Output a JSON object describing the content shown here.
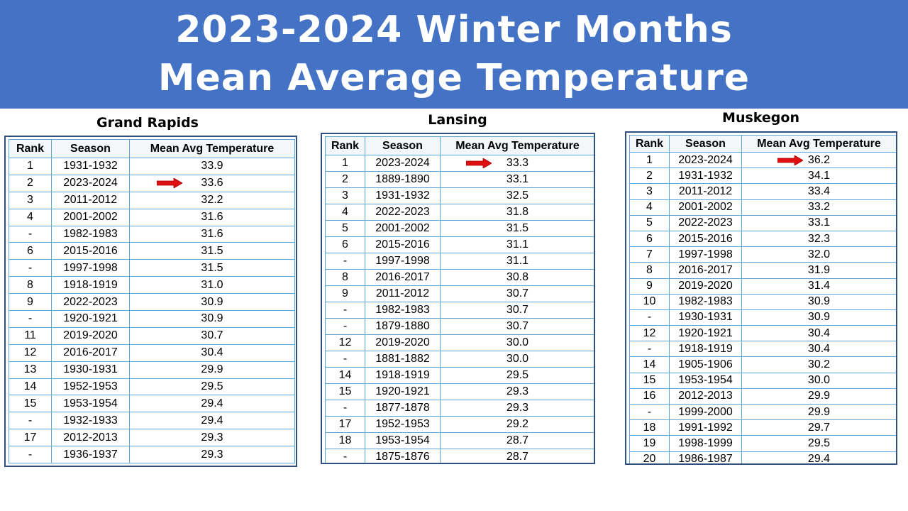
{
  "title": {
    "line1": "2023-2024 Winter Months",
    "line2": "Mean Average Temperature"
  },
  "headers": {
    "rank": "Rank",
    "season": "Season",
    "temp": "Mean Avg Temperature"
  },
  "arrow_color": "#e01010",
  "banner_color": "#4472c4",
  "tables": [
    {
      "city": "Grand Rapids",
      "rows": [
        {
          "rank": "1",
          "season": "1931-1932",
          "temp": "33.9"
        },
        {
          "rank": "2",
          "season": "2023-2024",
          "temp": "33.6",
          "arrow": true
        },
        {
          "rank": "3",
          "season": "2011-2012",
          "temp": "32.2"
        },
        {
          "rank": "4",
          "season": "2001-2002",
          "temp": "31.6"
        },
        {
          "rank": "-",
          "season": "1982-1983",
          "temp": "31.6"
        },
        {
          "rank": "6",
          "season": "2015-2016",
          "temp": "31.5"
        },
        {
          "rank": "-",
          "season": "1997-1998",
          "temp": "31.5"
        },
        {
          "rank": "8",
          "season": "1918-1919",
          "temp": "31.0"
        },
        {
          "rank": "9",
          "season": "2022-2023",
          "temp": "30.9"
        },
        {
          "rank": "-",
          "season": "1920-1921",
          "temp": "30.9"
        },
        {
          "rank": "11",
          "season": "2019-2020",
          "temp": "30.7"
        },
        {
          "rank": "12",
          "season": "2016-2017",
          "temp": "30.4"
        },
        {
          "rank": "13",
          "season": "1930-1931",
          "temp": "29.9"
        },
        {
          "rank": "14",
          "season": "1952-1953",
          "temp": "29.5"
        },
        {
          "rank": "15",
          "season": "1953-1954",
          "temp": "29.4"
        },
        {
          "rank": "-",
          "season": "1932-1933",
          "temp": "29.4"
        },
        {
          "rank": "17",
          "season": "2012-2013",
          "temp": "29.3"
        },
        {
          "rank": "-",
          "season": "1936-1937",
          "temp": "29.3"
        }
      ]
    },
    {
      "city": "Lansing",
      "rows": [
        {
          "rank": "1",
          "season": "2023-2024",
          "temp": "33.3",
          "arrow": true
        },
        {
          "rank": "2",
          "season": "1889-1890",
          "temp": "33.1"
        },
        {
          "rank": "3",
          "season": "1931-1932",
          "temp": "32.5"
        },
        {
          "rank": "4",
          "season": "2022-2023",
          "temp": "31.8"
        },
        {
          "rank": "5",
          "season": "2001-2002",
          "temp": "31.5"
        },
        {
          "rank": "6",
          "season": "2015-2016",
          "temp": "31.1"
        },
        {
          "rank": "-",
          "season": "1997-1998",
          "temp": "31.1"
        },
        {
          "rank": "8",
          "season": "2016-2017",
          "temp": "30.8"
        },
        {
          "rank": "9",
          "season": "2011-2012",
          "temp": "30.7"
        },
        {
          "rank": "-",
          "season": "1982-1983",
          "temp": "30.7"
        },
        {
          "rank": "-",
          "season": "1879-1880",
          "temp": "30.7"
        },
        {
          "rank": "12",
          "season": "2019-2020",
          "temp": "30.0"
        },
        {
          "rank": "-",
          "season": "1881-1882",
          "temp": "30.0"
        },
        {
          "rank": "14",
          "season": "1918-1919",
          "temp": "29.5"
        },
        {
          "rank": "15",
          "season": "1920-1921",
          "temp": "29.3"
        },
        {
          "rank": "-",
          "season": "1877-1878",
          "temp": "29.3"
        },
        {
          "rank": "17",
          "season": "1952-1953",
          "temp": "29.2"
        },
        {
          "rank": "18",
          "season": "1953-1954",
          "temp": "28.7"
        },
        {
          "rank": "-",
          "season": "1875-1876",
          "temp": "28.7"
        }
      ]
    },
    {
      "city": "Muskegon",
      "rows": [
        {
          "rank": "1",
          "season": "2023-2024",
          "temp": "36.2",
          "arrow": true
        },
        {
          "rank": "2",
          "season": "1931-1932",
          "temp": "34.1"
        },
        {
          "rank": "3",
          "season": "2011-2012",
          "temp": "33.4"
        },
        {
          "rank": "4",
          "season": "2001-2002",
          "temp": "33.2"
        },
        {
          "rank": "5",
          "season": "2022-2023",
          "temp": "33.1"
        },
        {
          "rank": "6",
          "season": "2015-2016",
          "temp": "32.3"
        },
        {
          "rank": "7",
          "season": "1997-1998",
          "temp": "32.0"
        },
        {
          "rank": "8",
          "season": "2016-2017",
          "temp": "31.9"
        },
        {
          "rank": "9",
          "season": "2019-2020",
          "temp": "31.4"
        },
        {
          "rank": "10",
          "season": "1982-1983",
          "temp": "30.9"
        },
        {
          "rank": "-",
          "season": "1930-1931",
          "temp": "30.9"
        },
        {
          "rank": "12",
          "season": "1920-1921",
          "temp": "30.4"
        },
        {
          "rank": "-",
          "season": "1918-1919",
          "temp": "30.4"
        },
        {
          "rank": "14",
          "season": "1905-1906",
          "temp": "30.2"
        },
        {
          "rank": "15",
          "season": "1953-1954",
          "temp": "30.0"
        },
        {
          "rank": "16",
          "season": "2012-2013",
          "temp": "29.9"
        },
        {
          "rank": "-",
          "season": "1999-2000",
          "temp": "29.9"
        },
        {
          "rank": "18",
          "season": "1991-1992",
          "temp": "29.7"
        },
        {
          "rank": "19",
          "season": "1998-1999",
          "temp": "29.5"
        },
        {
          "rank": "20",
          "season": "1986-1987",
          "temp": "29.4"
        }
      ]
    }
  ]
}
